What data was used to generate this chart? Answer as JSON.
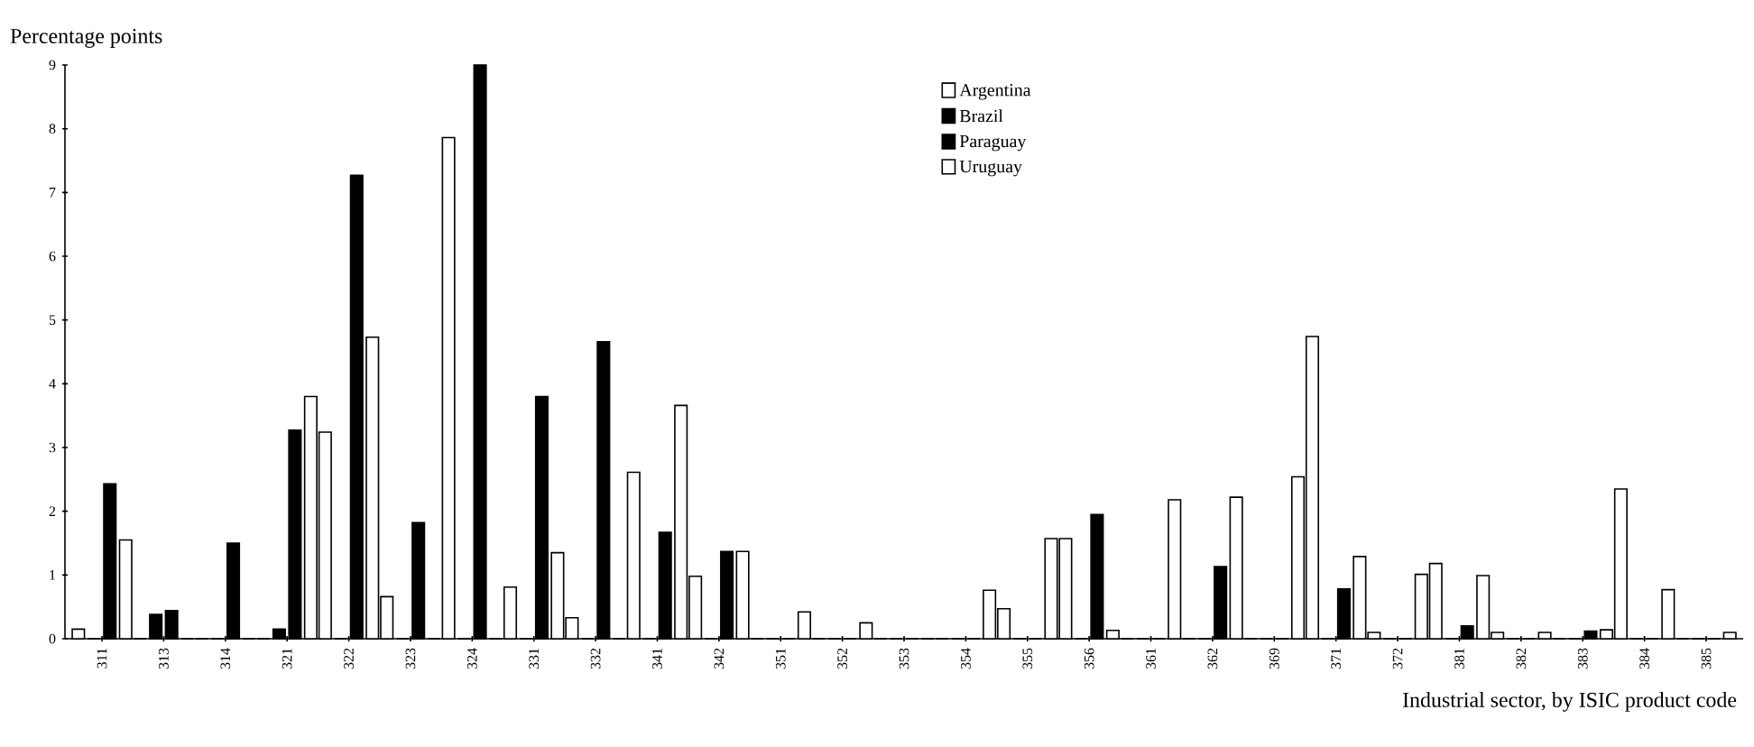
{
  "chart_data": {
    "type": "bar",
    "ylabel": "Percentage points",
    "xlabel": "Industrial sector, by ISIC product code",
    "categories": [
      "311",
      "313",
      "314",
      "321",
      "322",
      "323",
      "324",
      "331",
      "332",
      "341",
      "342",
      "351",
      "352",
      "353",
      "354",
      "355",
      "356",
      "361",
      "362",
      "369",
      "371",
      "372",
      "381",
      "382",
      "383",
      "384",
      "385"
    ],
    "series": [
      {
        "name": "Argentina",
        "color": "#ffffff",
        "values": [
          0.15,
          0,
          0,
          0,
          3.24,
          0.66,
          7.86,
          0.81,
          0.33,
          2.61,
          0.98,
          0,
          0,
          0,
          0,
          0.47,
          1.57,
          0,
          0,
          0,
          4.74,
          0.1,
          1.18,
          0.1,
          0,
          2.35,
          0
        ]
      },
      {
        "name": "Brazil",
        "color": "#000000",
        "values": [
          0,
          0.38,
          0,
          0.15,
          0,
          0,
          0,
          0,
          0,
          0,
          0,
          0,
          0,
          0,
          0,
          0,
          0,
          0,
          0,
          0,
          0,
          0,
          0,
          0,
          0,
          0,
          0
        ]
      },
      {
        "name": "Paraguay",
        "color": "#000000",
        "values": [
          2.43,
          0.44,
          1.5,
          3.27,
          7.27,
          1.82,
          9.0,
          3.8,
          4.66,
          1.67,
          1.37,
          0,
          0,
          0,
          0,
          0,
          1.95,
          0,
          1.13,
          0,
          0.78,
          0,
          0.2,
          0,
          0.12,
          0,
          0
        ]
      },
      {
        "name": "Uruguay",
        "color": "#ffffff",
        "values": [
          1.55,
          0,
          0,
          3.8,
          4.73,
          0,
          0,
          1.35,
          0,
          3.66,
          1.37,
          0.42,
          0.25,
          0,
          0.76,
          1.57,
          0.13,
          2.18,
          2.22,
          2.54,
          1.29,
          1.01,
          0.99,
          0.1,
          0.14,
          0.77,
          0.1
        ]
      }
    ],
    "ylim": [
      0,
      9
    ],
    "yticks": [
      0,
      1,
      2,
      3,
      4,
      5,
      6,
      7,
      8,
      9
    ],
    "legend": "top",
    "grid": false
  }
}
